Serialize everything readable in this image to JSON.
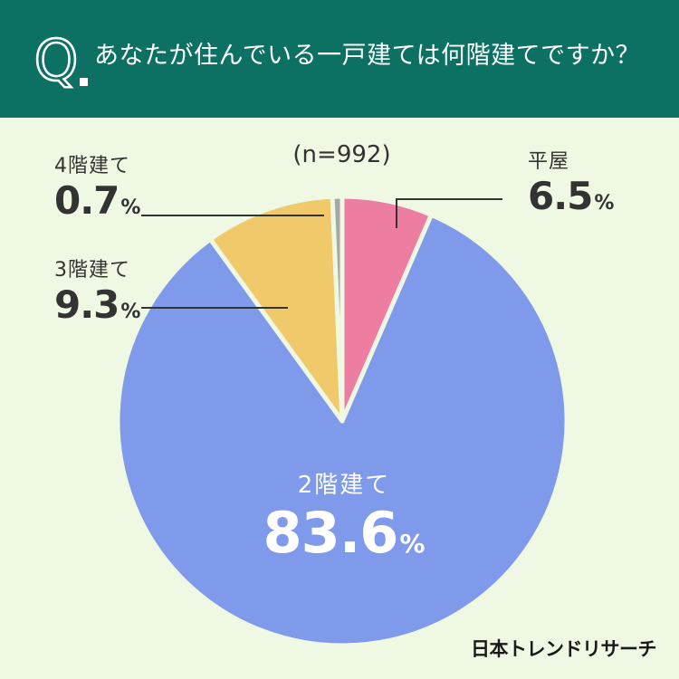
{
  "header": {
    "question": "あなたが住んでいる一戸建ては何階建てですか？",
    "q_letter": "Q"
  },
  "sample_label": "(n=992)",
  "brand": "日本トレンドリサーチ",
  "chart_data": {
    "type": "pie",
    "title": "あなたが住んでいる一戸建ては何階建てですか？",
    "subtitle": "(n=992)",
    "slices": [
      {
        "label": "平屋",
        "value": 6.5,
        "color": "#ee7ea1"
      },
      {
        "label": "2階建て",
        "value": 83.6,
        "color": "#7f9aea"
      },
      {
        "label": "3階建て",
        "value": 9.3,
        "color": "#efc96a"
      },
      {
        "label": "4階建て",
        "value": 0.7,
        "color": "#a7a7a7"
      }
    ],
    "value_display": [
      "6.5",
      "83.6",
      "9.3",
      "0.7"
    ],
    "unit": "%"
  }
}
